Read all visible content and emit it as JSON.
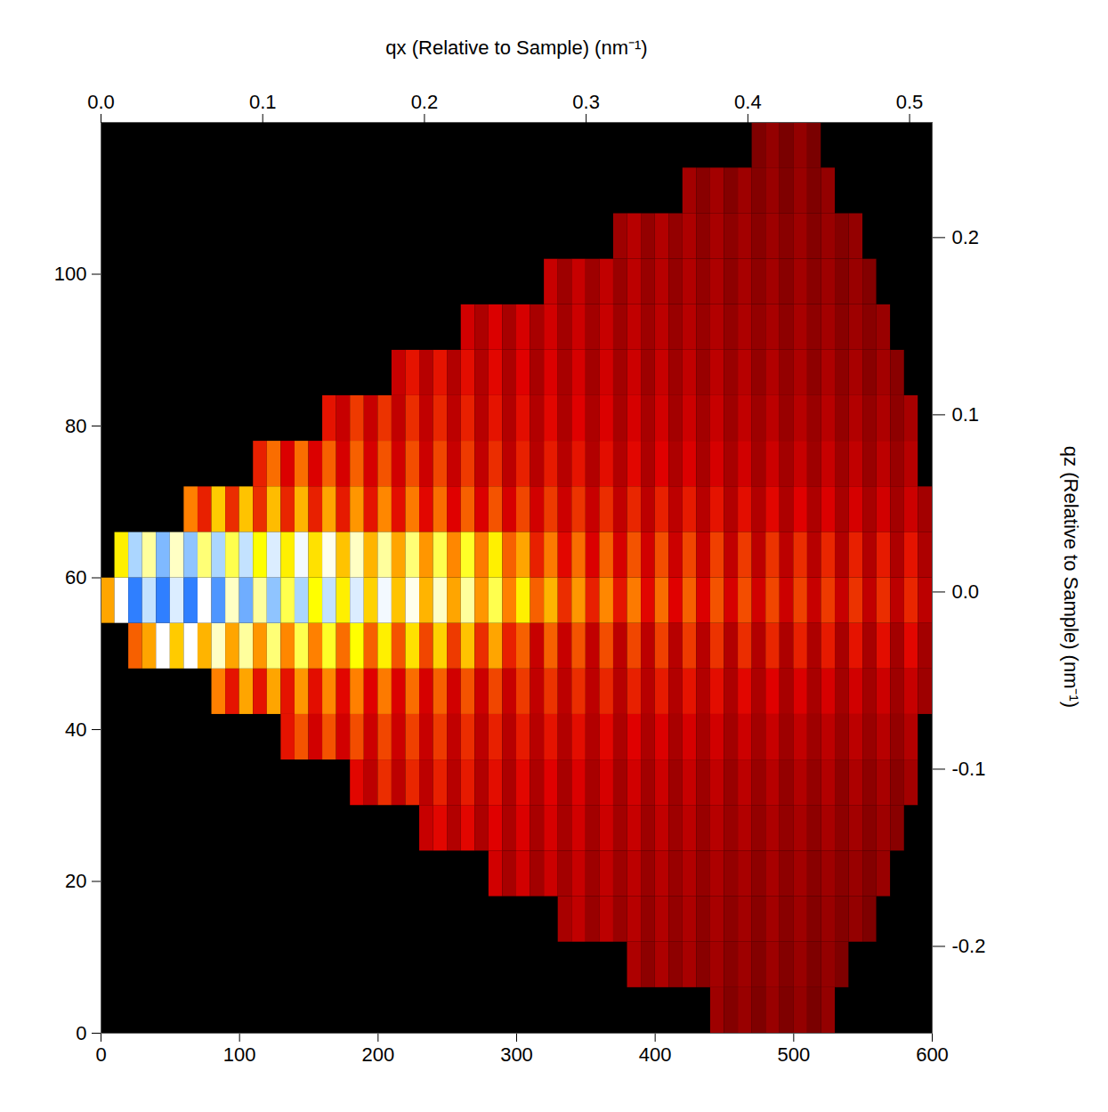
{
  "chart_data": {
    "type": "heatmap",
    "xlim": [
      0,
      600
    ],
    "xticks": [
      0,
      100,
      200,
      300,
      400,
      500,
      600
    ],
    "ylim": [
      0,
      120
    ],
    "yticks": [
      0,
      20,
      40,
      60,
      80,
      100
    ],
    "x2_label": "qx (Relative to Sample) (nm⁻¹)",
    "x2lim": [
      0,
      0.514
    ],
    "x2ticks": [
      {
        "value": 0,
        "label": "0.0"
      },
      0.1,
      0.2,
      0.3,
      0.4,
      0.5
    ],
    "y2_label": "qz (Relative to Sample) (nm⁻¹)",
    "y2lim": [
      -0.249,
      0.265
    ],
    "y2ticks": [
      -0.2,
      -0.1,
      {
        "value": 0,
        "label": "0.0"
      },
      0.1,
      0.2
    ],
    "color_range": [
      0,
      100
    ],
    "x_bins": [
      0,
      10,
      20,
      30,
      40,
      50,
      60,
      70,
      80,
      90,
      100,
      110,
      120,
      130,
      140,
      150,
      160,
      170,
      180,
      190,
      200,
      210,
      220,
      230,
      240,
      250,
      260,
      270,
      280,
      290,
      300,
      310,
      320,
      330,
      340,
      350,
      360,
      370,
      380,
      390,
      400,
      410,
      420,
      430,
      440,
      450,
      460,
      470,
      480,
      490,
      500,
      510,
      520,
      530,
      540,
      550,
      560,
      570,
      580,
      590,
      600
    ],
    "y_bins": [
      0,
      6,
      12,
      18,
      24,
      30,
      36,
      42,
      48,
      54,
      60,
      66,
      72,
      78,
      84,
      90,
      96,
      102,
      108,
      114,
      120
    ],
    "cells": [
      [
        0,
        0,
        0,
        0,
        0,
        0,
        0,
        0,
        0,
        0,
        0,
        0,
        0,
        0,
        0,
        0,
        0,
        0,
        0,
        0,
        0,
        0,
        0,
        0,
        0,
        0,
        0,
        0,
        0,
        0,
        0,
        0,
        0,
        0,
        0,
        0,
        0,
        0,
        0,
        0,
        0,
        0,
        0,
        0,
        22,
        17,
        21,
        16,
        21,
        16,
        20,
        15,
        20,
        0,
        0,
        0,
        0,
        0,
        0,
        0
      ],
      [
        0,
        0,
        0,
        0,
        0,
        0,
        0,
        0,
        0,
        0,
        0,
        0,
        0,
        0,
        0,
        0,
        0,
        0,
        0,
        0,
        0,
        0,
        0,
        0,
        0,
        0,
        0,
        0,
        0,
        0,
        0,
        0,
        0,
        0,
        0,
        0,
        0,
        0,
        25,
        19,
        25,
        19,
        24,
        18,
        23,
        18,
        22,
        17,
        22,
        17,
        21,
        16,
        20,
        16,
        0,
        0,
        0,
        0,
        0,
        0
      ],
      [
        0,
        0,
        0,
        0,
        0,
        0,
        0,
        0,
        0,
        0,
        0,
        0,
        0,
        0,
        0,
        0,
        0,
        0,
        0,
        0,
        0,
        0,
        0,
        0,
        0,
        0,
        0,
        0,
        0,
        0,
        0,
        0,
        0,
        24,
        29,
        21,
        28,
        21,
        27,
        20,
        26,
        20,
        25,
        19,
        24,
        19,
        23,
        18,
        23,
        18,
        22,
        17,
        21,
        17,
        20,
        16,
        0,
        0,
        0,
        0
      ],
      [
        0,
        0,
        0,
        0,
        0,
        0,
        0,
        0,
        0,
        0,
        0,
        0,
        0,
        0,
        0,
        0,
        0,
        0,
        0,
        0,
        0,
        0,
        0,
        0,
        0,
        0,
        0,
        0,
        32,
        24,
        32,
        23,
        31,
        23,
        30,
        22,
        29,
        22,
        28,
        21,
        27,
        21,
        26,
        20,
        25,
        20,
        24,
        19,
        24,
        19,
        23,
        18,
        22,
        18,
        21,
        17,
        21,
        0,
        0,
        0
      ],
      [
        0,
        0,
        0,
        0,
        0,
        0,
        0,
        0,
        0,
        0,
        0,
        0,
        0,
        0,
        0,
        0,
        0,
        0,
        0,
        0,
        0,
        0,
        0,
        30,
        36,
        26,
        36,
        25,
        35,
        25,
        34,
        24,
        33,
        24,
        32,
        23,
        31,
        23,
        30,
        22,
        29,
        22,
        28,
        21,
        27,
        21,
        26,
        20,
        25,
        20,
        24,
        19,
        24,
        19,
        23,
        18,
        22,
        18,
        0,
        0
      ],
      [
        0,
        0,
        0,
        0,
        0,
        0,
        0,
        0,
        0,
        0,
        0,
        0,
        0,
        0,
        0,
        0,
        0,
        0,
        36,
        28,
        42,
        28,
        41,
        28,
        40,
        27,
        39,
        26,
        37,
        25,
        36,
        25,
        35,
        24,
        34,
        24,
        33,
        23,
        32,
        23,
        31,
        22,
        30,
        22,
        29,
        21,
        28,
        21,
        27,
        20,
        26,
        20,
        26,
        19,
        25,
        19,
        24,
        18,
        23,
        0
      ],
      [
        0,
        0,
        0,
        0,
        0,
        0,
        0,
        0,
        0,
        0,
        0,
        0,
        0,
        38,
        48,
        32,
        48,
        32,
        47,
        31,
        46,
        31,
        45,
        30,
        44,
        29,
        42,
        28,
        40,
        27,
        39,
        27,
        38,
        26,
        37,
        26,
        36,
        25,
        35,
        25,
        34,
        24,
        33,
        24,
        32,
        23,
        31,
        23,
        30,
        22,
        29,
        22,
        28,
        21,
        28,
        21,
        27,
        20,
        26,
        0
      ],
      [
        0,
        0,
        0,
        0,
        0,
        0,
        0,
        0,
        55,
        38,
        60,
        38,
        60,
        38,
        58,
        37,
        56,
        36,
        55,
        35,
        54,
        34,
        52,
        33,
        50,
        32,
        48,
        31,
        46,
        30,
        44,
        29,
        43,
        28,
        42,
        28,
        41,
        27,
        40,
        27,
        39,
        26,
        38,
        26,
        37,
        25,
        36,
        25,
        35,
        24,
        34,
        24,
        33,
        23,
        32,
        23,
        31,
        22,
        30,
        22
      ],
      [
        0,
        0,
        50,
        60,
        85,
        65,
        85,
        62,
        82,
        60,
        80,
        58,
        78,
        56,
        76,
        55,
        74,
        52,
        72,
        50,
        70,
        48,
        68,
        46,
        66,
        44,
        64,
        42,
        60,
        40,
        50,
        30,
        50,
        30,
        48,
        29,
        47,
        28,
        46,
        28,
        45,
        27,
        44,
        27,
        43,
        26,
        42,
        26,
        41,
        25,
        40,
        25,
        39,
        24,
        38,
        24,
        37,
        23,
        36,
        23
      ],
      [
        60,
        85,
        100,
        90,
        100,
        88,
        100,
        85,
        98,
        82,
        96,
        80,
        94,
        76,
        92,
        72,
        90,
        70,
        88,
        66,
        86,
        64,
        84,
        62,
        82,
        60,
        80,
        58,
        76,
        55,
        70,
        50,
        62,
        42,
        58,
        40,
        56,
        38,
        54,
        36,
        52,
        35,
        50,
        34,
        48,
        33,
        47,
        32,
        46,
        31,
        45,
        30,
        44,
        30,
        43,
        29,
        42,
        28,
        41,
        28
      ],
      [
        0,
        70,
        92,
        80,
        95,
        82,
        94,
        78,
        92,
        76,
        90,
        72,
        88,
        70,
        86,
        68,
        84,
        64,
        82,
        62,
        80,
        60,
        78,
        58,
        76,
        56,
        74,
        54,
        70,
        50,
        60,
        40,
        54,
        36,
        52,
        34,
        50,
        33,
        48,
        32,
        47,
        31,
        46,
        30,
        45,
        29,
        44,
        28,
        43,
        28,
        42,
        27,
        41,
        26,
        40,
        26,
        39,
        25,
        38,
        25
      ],
      [
        0,
        0,
        0,
        0,
        0,
        0,
        55,
        40,
        65,
        42,
        64,
        42,
        63,
        41,
        62,
        40,
        60,
        39,
        58,
        38,
        56,
        37,
        54,
        36,
        52,
        35,
        50,
        34,
        48,
        33,
        46,
        32,
        44,
        31,
        43,
        30,
        42,
        29,
        41,
        28,
        40,
        28,
        39,
        27,
        38,
        26,
        37,
        26,
        36,
        25,
        35,
        25,
        34,
        24,
        33,
        24,
        32,
        23,
        31,
        23
      ],
      [
        0,
        0,
        0,
        0,
        0,
        0,
        0,
        0,
        0,
        0,
        0,
        40,
        52,
        34,
        52,
        34,
        50,
        33,
        50,
        33,
        48,
        32,
        47,
        31,
        46,
        30,
        44,
        29,
        42,
        28,
        40,
        27,
        39,
        27,
        38,
        26,
        37,
        26,
        36,
        25,
        35,
        25,
        34,
        24,
        33,
        24,
        32,
        23,
        31,
        23,
        30,
        22,
        30,
        22,
        29,
        21,
        28,
        21,
        27,
        0
      ],
      [
        0,
        0,
        0,
        0,
        0,
        0,
        0,
        0,
        0,
        0,
        0,
        0,
        0,
        0,
        0,
        0,
        38,
        30,
        44,
        30,
        43,
        29,
        42,
        29,
        41,
        28,
        40,
        27,
        38,
        26,
        37,
        26,
        36,
        25,
        35,
        25,
        34,
        24,
        33,
        24,
        32,
        23,
        31,
        23,
        30,
        22,
        29,
        22,
        28,
        21,
        27,
        21,
        27,
        20,
        26,
        20,
        25,
        19,
        24,
        0
      ],
      [
        0,
        0,
        0,
        0,
        0,
        0,
        0,
        0,
        0,
        0,
        0,
        0,
        0,
        0,
        0,
        0,
        0,
        0,
        0,
        0,
        0,
        30,
        38,
        27,
        38,
        26,
        37,
        26,
        36,
        25,
        35,
        24,
        34,
        24,
        33,
        23,
        32,
        23,
        31,
        22,
        30,
        22,
        29,
        21,
        28,
        21,
        27,
        20,
        26,
        20,
        25,
        19,
        25,
        19,
        24,
        18,
        23,
        18,
        0,
        0
      ],
      [
        0,
        0,
        0,
        0,
        0,
        0,
        0,
        0,
        0,
        0,
        0,
        0,
        0,
        0,
        0,
        0,
        0,
        0,
        0,
        0,
        0,
        0,
        0,
        0,
        0,
        0,
        32,
        25,
        34,
        24,
        33,
        24,
        32,
        23,
        31,
        23,
        30,
        22,
        29,
        22,
        28,
        21,
        27,
        21,
        26,
        20,
        25,
        20,
        24,
        19,
        24,
        19,
        23,
        18,
        22,
        18,
        21,
        0,
        0,
        0
      ],
      [
        0,
        0,
        0,
        0,
        0,
        0,
        0,
        0,
        0,
        0,
        0,
        0,
        0,
        0,
        0,
        0,
        0,
        0,
        0,
        0,
        0,
        0,
        0,
        0,
        0,
        0,
        0,
        0,
        0,
        0,
        0,
        0,
        30,
        22,
        30,
        22,
        29,
        21,
        28,
        21,
        27,
        20,
        26,
        20,
        25,
        19,
        24,
        19,
        23,
        18,
        23,
        18,
        22,
        17,
        21,
        17,
        0,
        0,
        0,
        0
      ],
      [
        0,
        0,
        0,
        0,
        0,
        0,
        0,
        0,
        0,
        0,
        0,
        0,
        0,
        0,
        0,
        0,
        0,
        0,
        0,
        0,
        0,
        0,
        0,
        0,
        0,
        0,
        0,
        0,
        0,
        0,
        0,
        0,
        0,
        0,
        0,
        0,
        0,
        22,
        27,
        20,
        26,
        20,
        25,
        19,
        24,
        19,
        23,
        18,
        22,
        18,
        22,
        17,
        21,
        17,
        20,
        0,
        0,
        0,
        0,
        0
      ],
      [
        0,
        0,
        0,
        0,
        0,
        0,
        0,
        0,
        0,
        0,
        0,
        0,
        0,
        0,
        0,
        0,
        0,
        0,
        0,
        0,
        0,
        0,
        0,
        0,
        0,
        0,
        0,
        0,
        0,
        0,
        0,
        0,
        0,
        0,
        0,
        0,
        0,
        0,
        0,
        0,
        0,
        0,
        23,
        18,
        23,
        17,
        22,
        17,
        21,
        16,
        21,
        16,
        20,
        0,
        0,
        0,
        0,
        0,
        0,
        0
      ],
      [
        0,
        0,
        0,
        0,
        0,
        0,
        0,
        0,
        0,
        0,
        0,
        0,
        0,
        0,
        0,
        0,
        0,
        0,
        0,
        0,
        0,
        0,
        0,
        0,
        0,
        0,
        0,
        0,
        0,
        0,
        0,
        0,
        0,
        0,
        0,
        0,
        0,
        0,
        0,
        0,
        0,
        0,
        0,
        0,
        0,
        0,
        0,
        16,
        20,
        15,
        20,
        15,
        0,
        0,
        0,
        0,
        0,
        0,
        0,
        0
      ]
    ]
  }
}
